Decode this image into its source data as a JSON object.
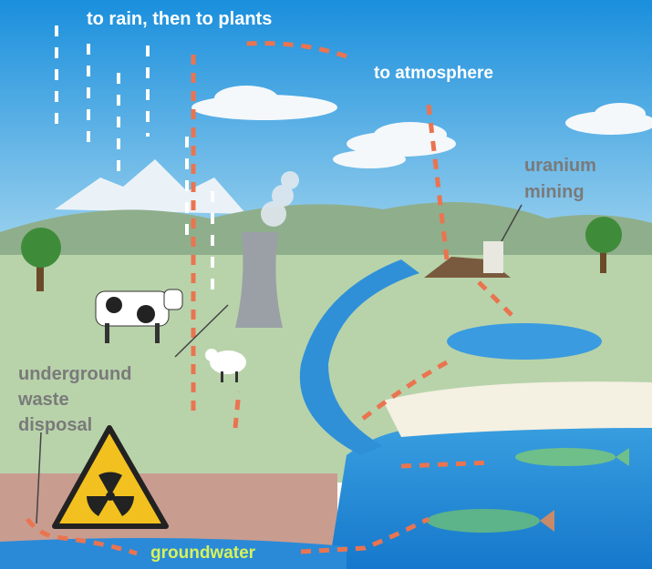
{
  "labels": {
    "rain": "to rain, then to plants",
    "atmosphere": "to atmosphere",
    "mining": [
      "uranium",
      "mining"
    ],
    "disposal": [
      "underground",
      "waste",
      "disposal"
    ],
    "groundwater": "groundwater"
  }
}
